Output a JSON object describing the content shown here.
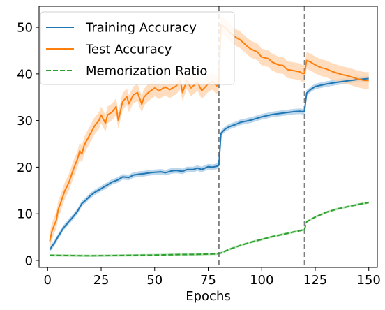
{
  "chart_data": {
    "type": "line",
    "xlabel": "Epochs",
    "ylabel": "",
    "xlim": [
      -4,
      154
    ],
    "ylim": [
      -1.5,
      54.5
    ],
    "xticks": [
      0,
      25,
      50,
      75,
      100,
      125,
      150
    ],
    "yticks": [
      0,
      10,
      20,
      30,
      40,
      50
    ],
    "vlines": [
      80,
      120
    ],
    "legend_position": "upper-left",
    "colors": {
      "train": "#1f77b4",
      "train_band": "#a6c8e4",
      "test": "#ff7f0e",
      "test_band": "#ffd1a8",
      "memo": "#2ca02c",
      "memo_band": "#a8dba8",
      "vline": "#7f7f7f"
    },
    "series": [
      {
        "name": "Training Accuracy",
        "key": "train",
        "style": "solid",
        "band": 0.6,
        "x": [
          1,
          2,
          3,
          4,
          5,
          6,
          7,
          8,
          9,
          10,
          12,
          14,
          16,
          18,
          20,
          22,
          25,
          28,
          30,
          33,
          35,
          38,
          40,
          43,
          45,
          48,
          50,
          53,
          55,
          58,
          60,
          63,
          65,
          68,
          70,
          72,
          75,
          77,
          79,
          80,
          81,
          83,
          85,
          88,
          90,
          95,
          100,
          105,
          110,
          115,
          118,
          119,
          120,
          121,
          123,
          125,
          130,
          135,
          140,
          145,
          150
        ],
        "y": [
          2.3,
          3.0,
          3.6,
          4.4,
          5.2,
          5.9,
          6.7,
          7.3,
          7.8,
          8.4,
          9.4,
          10.6,
          12.2,
          13.0,
          13.9,
          14.6,
          15.4,
          16.2,
          16.8,
          17.3,
          17.9,
          17.8,
          18.3,
          18.5,
          18.6,
          18.8,
          18.9,
          19.0,
          18.8,
          19.2,
          19.3,
          19.1,
          19.5,
          19.5,
          19.8,
          19.5,
          20.1,
          20.0,
          20.2,
          20.4,
          27.3,
          28.2,
          28.7,
          29.2,
          29.6,
          30.1,
          30.8,
          31.3,
          31.6,
          31.9,
          32.0,
          31.9,
          32.0,
          35.9,
          36.7,
          37.3,
          37.8,
          38.2,
          38.5,
          38.8,
          39.0
        ]
      },
      {
        "name": "Test Accuracy",
        "key": "test",
        "style": "solid",
        "band": 1.8,
        "x": [
          1,
          2,
          3,
          4,
          5,
          6,
          7,
          8,
          10,
          12,
          14,
          15,
          16,
          17,
          18,
          20,
          22,
          24,
          25,
          27,
          28,
          30,
          32,
          33,
          35,
          37,
          38,
          40,
          42,
          44,
          45,
          47,
          50,
          52,
          55,
          57,
          60,
          62,
          63,
          65,
          67,
          70,
          72,
          75,
          77,
          79,
          80,
          81,
          83,
          85,
          88,
          90,
          93,
          95,
          98,
          100,
          103,
          105,
          108,
          110,
          112,
          115,
          118,
          119,
          120,
          121,
          123,
          125,
          128,
          130,
          133,
          135,
          138,
          140,
          143,
          145,
          148,
          150
        ],
        "y": [
          4.1,
          6.2,
          7.5,
          8.5,
          11.0,
          12.2,
          13.6,
          14.9,
          16.8,
          19.5,
          21.8,
          23.5,
          22.8,
          24.6,
          25.5,
          27.2,
          28.9,
          30.0,
          31.2,
          29.4,
          31.2,
          31.8,
          33.0,
          30.0,
          34.0,
          35.1,
          33.6,
          35.5,
          36.0,
          33.5,
          35.0,
          36.0,
          37.0,
          36.4,
          37.2,
          36.6,
          37.4,
          38.5,
          36.0,
          38.6,
          37.0,
          38.2,
          36.4,
          37.9,
          38.4,
          37.4,
          38.4,
          50.5,
          49.9,
          48.9,
          47.8,
          47.3,
          46.0,
          45.3,
          44.7,
          43.6,
          43.3,
          42.5,
          41.9,
          41.8,
          40.9,
          40.7,
          40.4,
          40.1,
          40.1,
          42.9,
          42.5,
          41.9,
          41.3,
          41.1,
          40.5,
          40.2,
          39.8,
          39.6,
          39.2,
          38.9,
          38.6,
          38.6
        ]
      },
      {
        "name": "Memorization Ratio",
        "key": "memo",
        "style": "dashed",
        "band": 0.25,
        "x": [
          1,
          10,
          20,
          30,
          40,
          50,
          60,
          70,
          79,
          80,
          81,
          85,
          90,
          95,
          100,
          105,
          110,
          115,
          119,
          120,
          121,
          125,
          130,
          135,
          140,
          145,
          150
        ],
        "y": [
          1.1,
          1.05,
          1.0,
          1.05,
          1.1,
          1.15,
          1.25,
          1.3,
          1.4,
          1.5,
          1.6,
          2.4,
          3.2,
          3.9,
          4.5,
          5.1,
          5.6,
          6.1,
          6.5,
          6.6,
          8.3,
          9.3,
          10.3,
          11.0,
          11.5,
          12.0,
          12.4
        ]
      }
    ]
  }
}
